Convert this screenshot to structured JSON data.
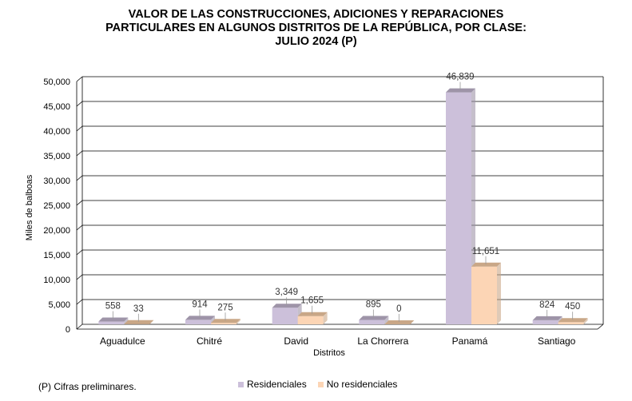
{
  "chart_data": {
    "type": "bar",
    "title_lines": [
      "VALOR DE LAS CONSTRUCCIONES, ADICIONES Y REPARACIONES",
      "PARTICULARES EN ALGUNOS DISTRITOS DE LA REPÚBLICA, POR CLASE:",
      "JULIO 2024 (P)"
    ],
    "categories": [
      "Aguadulce",
      "Chitré",
      "David",
      "La Chorrera",
      "Panamá",
      "Santiago"
    ],
    "series": [
      {
        "name": "Residenciales",
        "values": [
          558,
          914,
          3349,
          895,
          46839,
          824
        ],
        "labels": [
          "558",
          "914",
          "3,349",
          "895",
          "46,839",
          "824"
        ],
        "color": "#ccc0da",
        "top_color": "#9e94a8"
      },
      {
        "name": "No residenciales",
        "values": [
          33,
          275,
          1655,
          0,
          11651,
          450
        ],
        "labels": [
          "33",
          "275",
          "1,655",
          "0",
          "11,651",
          "450"
        ],
        "color": "#fcd5b5",
        "top_color": "#c9a787"
      }
    ],
    "xlabel": "Distritos",
    "ylabel": "Miles de balboas",
    "ylim": [
      0,
      50000
    ],
    "yticks": [
      0,
      5000,
      10000,
      15000,
      20000,
      25000,
      30000,
      35000,
      40000,
      45000,
      50000
    ],
    "ytick_labels": [
      "0",
      "5,000",
      "10,000",
      "15,000",
      "20,000",
      "25,000",
      "30,000",
      "35,000",
      "40,000",
      "45,000",
      "50,000"
    ],
    "grid": true,
    "legend_position": "bottom"
  },
  "footnote": "(P) Cifras  preliminares."
}
